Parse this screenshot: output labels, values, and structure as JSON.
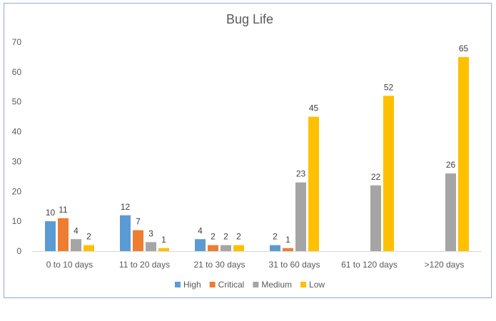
{
  "chart_data": {
    "type": "bar",
    "title": "Bug Life",
    "xlabel": "",
    "ylabel": "",
    "categories": [
      "0 to 10 days",
      "11 to 20 days",
      "21 to 30 days",
      "31 to 60 days",
      "61 to 120 days",
      ">120 days"
    ],
    "series": [
      {
        "name": "High",
        "color": "#5b9bd5",
        "values": [
          10,
          12,
          4,
          2,
          null,
          null
        ]
      },
      {
        "name": "Critical",
        "color": "#ed7d31",
        "values": [
          11,
          7,
          2,
          1,
          null,
          null
        ]
      },
      {
        "name": "Medium",
        "color": "#a5a5a5",
        "values": [
          4,
          3,
          2,
          23,
          22,
          26
        ]
      },
      {
        "name": "Low",
        "color": "#ffc000",
        "values": [
          2,
          1,
          2,
          45,
          52,
          65
        ]
      }
    ],
    "ylim": [
      0,
      70
    ],
    "yticks": [
      0,
      10,
      20,
      30,
      40,
      50,
      60,
      70
    ],
    "grid": false,
    "legend": "bottom",
    "data_labels": true
  }
}
